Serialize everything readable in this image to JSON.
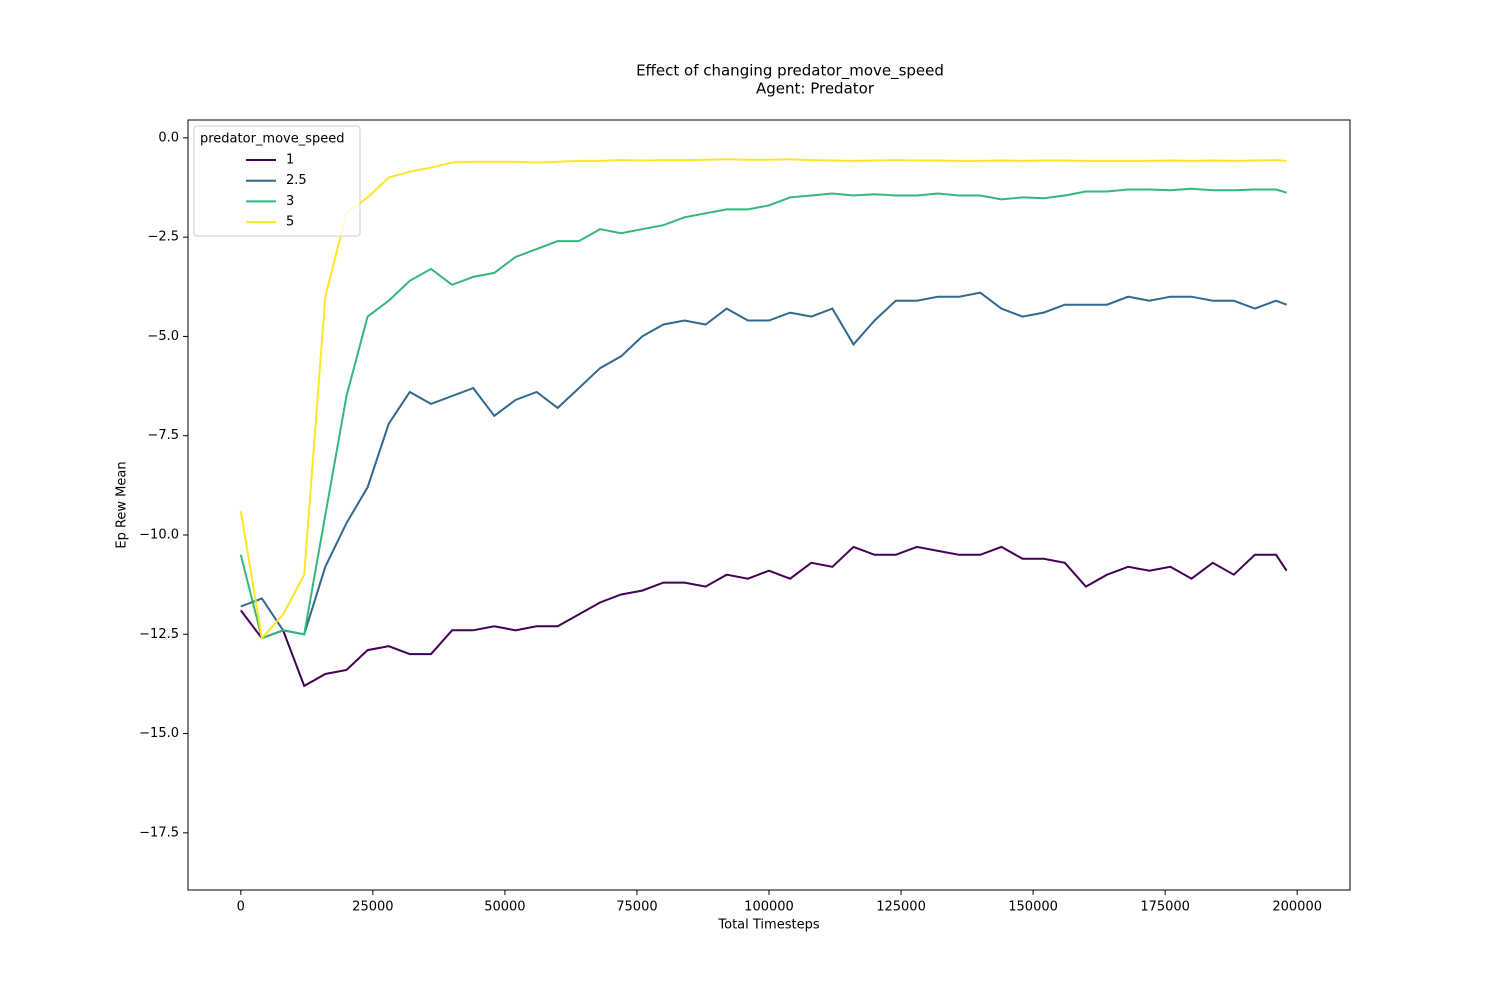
{
  "chart_data": {
    "type": "line",
    "title": "Effect of changing predator_move_speed",
    "subtitle": "Agent: Predator",
    "xlabel": "Total Timesteps",
    "ylabel": "Ep Rew Mean",
    "legend_title": "predator_move_speed",
    "legend": "upper left",
    "grid": false,
    "xlim": [
      -10000,
      210000
    ],
    "ylim": [
      -18.94,
      0.45
    ],
    "xticks": [
      0,
      25000,
      50000,
      75000,
      100000,
      125000,
      150000,
      175000,
      200000
    ],
    "yticks": [
      {
        "value": 0,
        "label": "0.0"
      },
      {
        "value": -2.5,
        "label": "−2.5"
      },
      {
        "value": -5,
        "label": "−5.0"
      },
      {
        "value": -7.5,
        "label": "−7.5"
      },
      {
        "value": -10,
        "label": "−10.0"
      },
      {
        "value": -12.5,
        "label": "−12.5"
      },
      {
        "value": -15,
        "label": "−15.0"
      },
      {
        "value": -17.5,
        "label": "−17.5"
      }
    ],
    "x": [
      0,
      4000,
      8000,
      12000,
      16000,
      20000,
      24000,
      28000,
      32000,
      36000,
      40000,
      44000,
      48000,
      52000,
      56000,
      60000,
      64000,
      68000,
      72000,
      76000,
      80000,
      84000,
      88000,
      92000,
      96000,
      100000,
      104000,
      108000,
      112000,
      116000,
      120000,
      124000,
      128000,
      132000,
      136000,
      140000,
      144000,
      148000,
      152000,
      156000,
      160000,
      164000,
      168000,
      172000,
      176000,
      180000,
      184000,
      188000,
      192000,
      196000,
      198000
    ],
    "series": [
      {
        "name": "1",
        "color": "#440154",
        "values": [
          -11.9,
          -12.6,
          -12.4,
          -13.8,
          -13.5,
          -13.4,
          -12.9,
          -12.8,
          -13.0,
          -13.0,
          -12.4,
          -12.4,
          -12.3,
          -12.4,
          -12.3,
          -12.3,
          -12.0,
          -11.7,
          -11.5,
          -11.4,
          -11.2,
          -11.2,
          -11.3,
          -11.0,
          -11.1,
          -10.9,
          -11.1,
          -10.7,
          -10.8,
          -10.3,
          -10.5,
          -10.5,
          -10.3,
          -10.4,
          -10.5,
          -10.5,
          -10.3,
          -10.6,
          -10.6,
          -10.7,
          -11.3,
          -11.0,
          -10.8,
          -10.9,
          -10.8,
          -11.1,
          -10.7,
          -11.0,
          -10.5,
          -10.5,
          -10.9
        ]
      },
      {
        "name": "2.5",
        "color": "#31688e",
        "values": [
          -11.8,
          -11.6,
          -12.4,
          -12.5,
          -10.8,
          -9.7,
          -8.8,
          -7.2,
          -6.4,
          -6.7,
          -6.5,
          -6.3,
          -7.0,
          -6.6,
          -6.4,
          -6.8,
          -6.3,
          -5.8,
          -5.5,
          -5.0,
          -4.7,
          -4.6,
          -4.7,
          -4.3,
          -4.6,
          -4.6,
          -4.4,
          -4.5,
          -4.3,
          -5.2,
          -4.6,
          -4.1,
          -4.1,
          -4.0,
          -4.0,
          -3.9,
          -4.3,
          -4.5,
          -4.4,
          -4.2,
          -4.2,
          -4.2,
          -4.0,
          -4.1,
          -4.0,
          -4.0,
          -4.1,
          -4.1,
          -4.3,
          -4.1,
          -4.2
        ]
      },
      {
        "name": "3",
        "color": "#35b779",
        "values": [
          -10.5,
          -12.6,
          -12.4,
          -12.5,
          -9.5,
          -6.5,
          -4.5,
          -4.1,
          -3.6,
          -3.3,
          -3.7,
          -3.5,
          -3.4,
          -3.0,
          -2.8,
          -2.6,
          -2.6,
          -2.3,
          -2.4,
          -2.3,
          -2.2,
          -2.0,
          -1.9,
          -1.8,
          -1.8,
          -1.7,
          -1.5,
          -1.45,
          -1.4,
          -1.45,
          -1.42,
          -1.45,
          -1.45,
          -1.4,
          -1.45,
          -1.45,
          -1.55,
          -1.5,
          -1.52,
          -1.45,
          -1.35,
          -1.35,
          -1.3,
          -1.3,
          -1.32,
          -1.28,
          -1.32,
          -1.32,
          -1.3,
          -1.3,
          -1.38
        ]
      },
      {
        "name": "5",
        "color": "#fde725",
        "values": [
          -9.4,
          -12.6,
          -12.0,
          -11.0,
          -4.0,
          -1.9,
          -1.5,
          -1.0,
          -0.85,
          -0.75,
          -0.62,
          -0.6,
          -0.6,
          -0.6,
          -0.62,
          -0.6,
          -0.58,
          -0.58,
          -0.56,
          -0.57,
          -0.56,
          -0.56,
          -0.55,
          -0.54,
          -0.55,
          -0.55,
          -0.54,
          -0.56,
          -0.57,
          -0.58,
          -0.57,
          -0.56,
          -0.57,
          -0.57,
          -0.58,
          -0.58,
          -0.57,
          -0.58,
          -0.57,
          -0.57,
          -0.58,
          -0.58,
          -0.58,
          -0.58,
          -0.57,
          -0.58,
          -0.57,
          -0.58,
          -0.57,
          -0.56,
          -0.58
        ]
      }
    ]
  }
}
